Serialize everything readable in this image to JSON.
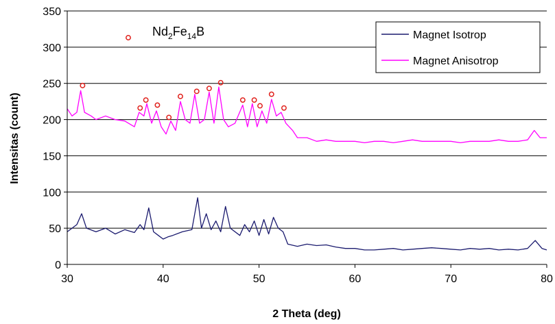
{
  "chart_data": {
    "type": "line",
    "title": "",
    "xlabel": "2 Theta (deg)",
    "ylabel": "Intensitas (count)",
    "xlim": [
      30,
      80
    ],
    "ylim": [
      0,
      350
    ],
    "x_ticks": [
      "30",
      "40",
      "50",
      "60",
      "70",
      "80"
    ],
    "y_ticks": [
      "0",
      "50",
      "100",
      "150",
      "200",
      "250",
      "300",
      "350"
    ],
    "grid": "horizontal",
    "legend_position": "top-right",
    "annotation": {
      "marker": "open-circle",
      "color": "#e0201b",
      "label_main": "Nd",
      "label_sub1": "2",
      "label_mid": "Fe",
      "label_sub2": "14",
      "label_end": "B"
    },
    "series": [
      {
        "name": "Magnet Isotrop",
        "color": "#1a1a6e",
        "x": [
          30,
          31,
          31.5,
          32,
          33,
          34,
          35,
          36,
          37,
          37.6,
          38,
          38.5,
          39,
          39.5,
          40,
          40.5,
          41,
          42,
          43,
          43.6,
          44,
          44.5,
          45,
          45.5,
          46,
          46.5,
          47,
          48,
          48.5,
          49,
          49.5,
          50,
          50.5,
          51,
          51.5,
          52,
          52.5,
          53,
          54,
          55,
          56,
          57,
          58,
          59,
          60,
          61,
          62,
          63,
          64,
          65,
          66,
          67,
          68,
          69,
          70,
          71,
          72,
          73,
          74,
          75,
          76,
          77,
          78,
          78.8,
          79.5,
          80
        ],
        "y": [
          45,
          55,
          70,
          50,
          45,
          50,
          42,
          48,
          44,
          55,
          48,
          78,
          45,
          40,
          35,
          38,
          40,
          45,
          48,
          92,
          50,
          70,
          48,
          60,
          45,
          80,
          50,
          40,
          55,
          45,
          60,
          40,
          62,
          42,
          65,
          50,
          45,
          28,
          25,
          28,
          26,
          27,
          24,
          22,
          22,
          20,
          20,
          21,
          22,
          20,
          21,
          22,
          23,
          22,
          21,
          20,
          22,
          21,
          22,
          20,
          21,
          20,
          22,
          33,
          22,
          20
        ]
      },
      {
        "name": "Magnet Anisotrop",
        "color": "#ff00ff",
        "x": [
          30,
          30.5,
          31,
          31.4,
          31.8,
          32.5,
          33,
          34,
          35,
          36,
          37,
          37.5,
          38,
          38.3,
          38.8,
          39.3,
          39.8,
          40.3,
          40.8,
          41.3,
          41.8,
          42.3,
          42.8,
          43.3,
          43.8,
          44.3,
          44.8,
          45.3,
          45.8,
          46.3,
          46.8,
          47.5,
          48.3,
          48.8,
          49.3,
          49.8,
          50.3,
          50.8,
          51.3,
          51.8,
          52.3,
          52.8,
          53.5,
          54,
          55,
          56,
          57,
          58,
          59,
          60,
          61,
          62,
          63,
          64,
          65,
          66,
          67,
          68,
          69,
          70,
          71,
          72,
          73,
          74,
          75,
          76,
          77,
          78,
          78.7,
          79.3,
          80
        ],
        "y": [
          215,
          205,
          210,
          240,
          210,
          205,
          200,
          205,
          200,
          198,
          190,
          210,
          205,
          222,
          195,
          212,
          190,
          180,
          198,
          185,
          225,
          200,
          195,
          235,
          195,
          200,
          238,
          195,
          245,
          200,
          190,
          195,
          220,
          190,
          222,
          190,
          212,
          195,
          228,
          205,
          210,
          195,
          185,
          175,
          175,
          170,
          172,
          170,
          170,
          170,
          168,
          170,
          170,
          168,
          170,
          172,
          170,
          170,
          170,
          170,
          168,
          170,
          170,
          170,
          172,
          170,
          170,
          172,
          185,
          175,
          175
        ]
      }
    ],
    "peak_markers": [
      {
        "x": 31.6,
        "y": 247
      },
      {
        "x": 37.6,
        "y": 216
      },
      {
        "x": 38.2,
        "y": 227
      },
      {
        "x": 39.4,
        "y": 220
      },
      {
        "x": 40.6,
        "y": 203
      },
      {
        "x": 41.8,
        "y": 232
      },
      {
        "x": 43.5,
        "y": 239
      },
      {
        "x": 44.8,
        "y": 243
      },
      {
        "x": 46.0,
        "y": 251
      },
      {
        "x": 48.3,
        "y": 227
      },
      {
        "x": 49.5,
        "y": 227
      },
      {
        "x": 50.1,
        "y": 219
      },
      {
        "x": 51.3,
        "y": 235
      },
      {
        "x": 52.6,
        "y": 216
      }
    ]
  }
}
